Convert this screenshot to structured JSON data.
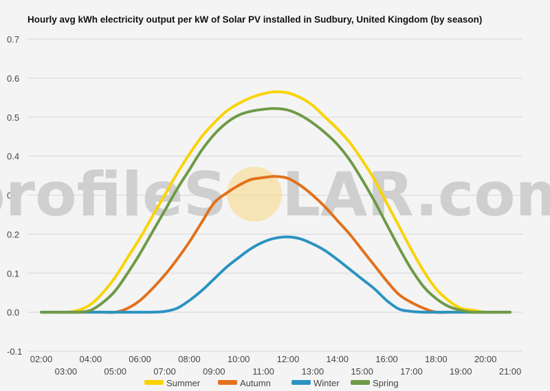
{
  "watermark": {
    "left": "profileS",
    "right": "LAR.com"
  },
  "colors": {
    "Summer": "#f9d303",
    "Autumn": "#e2711d",
    "Winter": "#2b93c1",
    "Spring": "#6f9a48",
    "sun": "#f7d98a"
  },
  "chart_data": {
    "type": "line",
    "title": "Hourly avg kWh electricity output per kW of Solar PV installed in Sudbury, United Kingdom (by season)",
    "xlabel": "",
    "ylabel": "",
    "ylim": [
      -0.1,
      0.7
    ],
    "yticks": [
      "-0.1",
      "0.0",
      "0.1",
      "0.2",
      "0.3",
      "0.4",
      "0.5",
      "0.6",
      "0.7"
    ],
    "xticks_upper": [
      "02:00",
      "04:00",
      "06:00",
      "08:00",
      "10:00",
      "12:00",
      "14:00",
      "16:00",
      "18:00",
      "20:00"
    ],
    "xticks_lower": [
      "03:00",
      "05:00",
      "07:00",
      "09:00",
      "11:00",
      "13:00",
      "15:00",
      "17:00",
      "19:00",
      "21:00"
    ],
    "grid": true,
    "legend": "bottom",
    "x": [
      2,
      2.5,
      3,
      3.5,
      4,
      4.5,
      5,
      5.5,
      6,
      6.5,
      7,
      7.5,
      8,
      8.5,
      9,
      9.5,
      10,
      10.5,
      11,
      11.5,
      12,
      12.5,
      13,
      13.5,
      14,
      14.5,
      15,
      15.5,
      16,
      16.5,
      17,
      17.5,
      18,
      18.5,
      19,
      19.5,
      20,
      20.5,
      21
    ],
    "series": [
      {
        "name": "Summer",
        "values": [
          0,
          0,
          0,
          0.005,
          0.02,
          0.05,
          0.09,
          0.14,
          0.19,
          0.245,
          0.3,
          0.355,
          0.405,
          0.45,
          0.485,
          0.515,
          0.535,
          0.55,
          0.56,
          0.565,
          0.562,
          0.55,
          0.53,
          0.5,
          0.47,
          0.435,
          0.39,
          0.34,
          0.28,
          0.22,
          0.16,
          0.105,
          0.06,
          0.03,
          0.01,
          0.005,
          0,
          0,
          0
        ]
      },
      {
        "name": "Autumn",
        "values": [
          0,
          0,
          0,
          0,
          0,
          0,
          0,
          0.01,
          0.03,
          0.06,
          0.095,
          0.135,
          0.18,
          0.23,
          0.28,
          0.305,
          0.325,
          0.34,
          0.345,
          0.348,
          0.343,
          0.325,
          0.3,
          0.27,
          0.235,
          0.2,
          0.16,
          0.12,
          0.08,
          0.045,
          0.025,
          0.01,
          0,
          0,
          0,
          0,
          0,
          0,
          0
        ]
      },
      {
        "name": "Winter",
        "values": [
          0,
          0,
          0,
          0,
          0,
          0,
          0,
          0,
          0,
          0,
          0.002,
          0.01,
          0.03,
          0.055,
          0.085,
          0.115,
          0.14,
          0.163,
          0.18,
          0.19,
          0.193,
          0.188,
          0.175,
          0.158,
          0.135,
          0.11,
          0.085,
          0.06,
          0.03,
          0.008,
          0.002,
          0,
          0,
          0,
          0,
          0,
          0,
          0,
          0
        ]
      },
      {
        "name": "Spring",
        "values": [
          0,
          0,
          0,
          0,
          0.005,
          0.025,
          0.055,
          0.1,
          0.15,
          0.205,
          0.26,
          0.315,
          0.365,
          0.415,
          0.455,
          0.485,
          0.505,
          0.515,
          0.52,
          0.522,
          0.518,
          0.505,
          0.485,
          0.46,
          0.43,
          0.39,
          0.34,
          0.285,
          0.225,
          0.165,
          0.11,
          0.065,
          0.035,
          0.015,
          0.005,
          0,
          0,
          0,
          0
        ]
      }
    ]
  }
}
